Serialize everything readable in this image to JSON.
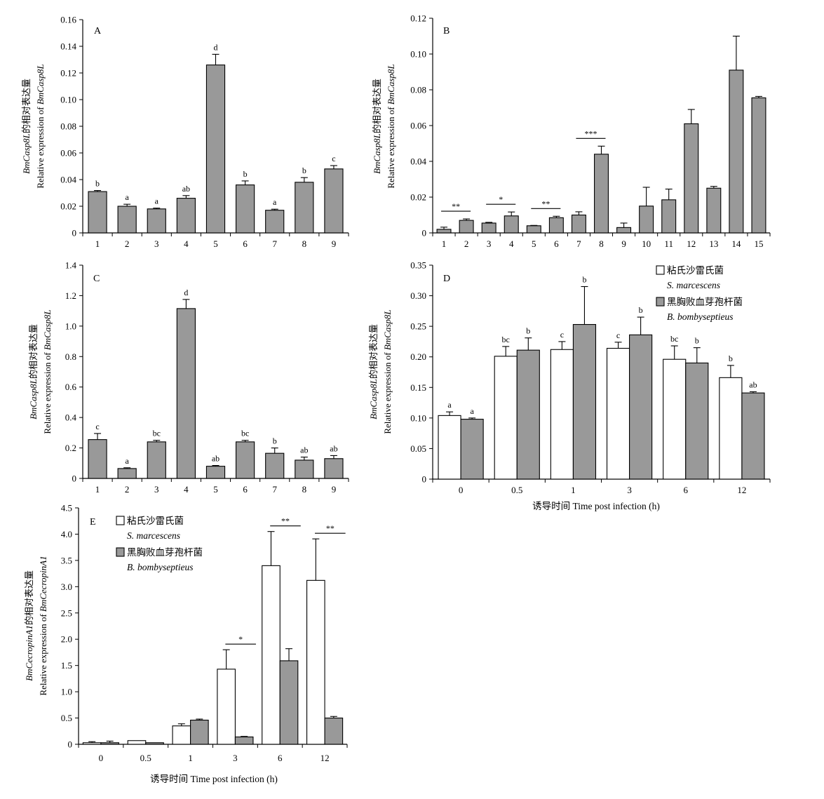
{
  "chart_data": [
    {
      "type": "bar",
      "panel": "A",
      "ylabel_cn": "BmCasp8L的相对表达量",
      "ylabel_en": "Relative expression of BmCasp8L",
      "xlabel": "",
      "ylim": [
        0,
        0.16
      ],
      "yticks": [
        "0",
        "0.02",
        "0.04",
        "0.06",
        "0.08",
        "0.10",
        "0.12",
        "0.14",
        "0.16"
      ],
      "categories": [
        "1",
        "2",
        "3",
        "4",
        "5",
        "6",
        "7",
        "8",
        "9"
      ],
      "series": [
        {
          "color": "#999999",
          "values": [
            0.031,
            0.02,
            0.018,
            0.026,
            0.126,
            0.036,
            0.017,
            0.038,
            0.048
          ],
          "errors": [
            0.0008,
            0.0015,
            0.0006,
            0.002,
            0.008,
            0.003,
            0.0008,
            0.0035,
            0.0025
          ],
          "labels": [
            "b",
            "a",
            "a",
            "ab",
            "d",
            "b",
            "a",
            "b",
            "c"
          ]
        }
      ]
    },
    {
      "type": "bar",
      "panel": "B",
      "ylabel_cn": "BmCasp8L的相对表达量",
      "ylabel_en": "Relative expression of BmCasp8L",
      "xlabel": "",
      "ylim": [
        0,
        0.12
      ],
      "yticks": [
        "0",
        "0.02",
        "0.04",
        "0.06",
        "0.08",
        "0.10",
        "0.12"
      ],
      "categories": [
        "1",
        "2",
        "3",
        "4",
        "5",
        "6",
        "7",
        "8",
        "9",
        "10",
        "11",
        "12",
        "13",
        "14",
        "15"
      ],
      "series": [
        {
          "color": "#999999",
          "values": [
            0.002,
            0.007,
            0.0055,
            0.0095,
            0.004,
            0.0085,
            0.01,
            0.044,
            0.003,
            0.015,
            0.0185,
            0.061,
            0.025,
            0.091,
            0.0755
          ],
          "errors": [
            0.0012,
            0.0008,
            0.0004,
            0.0022,
            0.0002,
            0.0008,
            0.0018,
            0.0045,
            0.0025,
            0.0105,
            0.006,
            0.008,
            0.001,
            0.019,
            0.0008
          ],
          "labels": [
            "",
            "",
            "",
            "",
            "",
            "",
            "",
            "",
            "",
            "",
            "",
            "",
            "",
            "",
            ""
          ]
        }
      ],
      "significance": [
        {
          "from": 1,
          "to": 2,
          "text": "**"
        },
        {
          "from": 3,
          "to": 4,
          "text": "*"
        },
        {
          "from": 5,
          "to": 6,
          "text": "**"
        },
        {
          "from": 7,
          "to": 8,
          "text": "***"
        }
      ]
    },
    {
      "type": "bar",
      "panel": "C",
      "ylabel_cn": "BmCasp8L的相对表达量",
      "ylabel_en": "Relative expression of BmCasp8L",
      "xlabel": "",
      "ylim": [
        0,
        1.4
      ],
      "yticks": [
        "0",
        "0.2",
        "0.4",
        "0.6",
        "0.8",
        "1.0",
        "1.2",
        "1.4"
      ],
      "categories": [
        "1",
        "2",
        "3",
        "4",
        "5",
        "6",
        "7",
        "8",
        "9"
      ],
      "series": [
        {
          "color": "#999999",
          "values": [
            0.255,
            0.065,
            0.24,
            1.115,
            0.08,
            0.24,
            0.165,
            0.12,
            0.13
          ],
          "errors": [
            0.04,
            0.005,
            0.01,
            0.06,
            0.005,
            0.01,
            0.035,
            0.02,
            0.02
          ],
          "labels": [
            "c",
            "a",
            "bc",
            "d",
            "ab",
            "bc",
            "b",
            "ab",
            "ab"
          ]
        }
      ]
    },
    {
      "type": "bar",
      "panel": "D",
      "ylabel_cn": "BmCasp8L的相对表达量",
      "ylabel_en": "Relative expression of BmCasp8L",
      "xlabel": "诱导时间 Time post infection (h)",
      "ylim": [
        0,
        0.35
      ],
      "yticks": [
        "0",
        "0.05",
        "0.10",
        "0.15",
        "0.20",
        "0.25",
        "0.30",
        "0.35"
      ],
      "categories": [
        "0",
        "0.5",
        "1",
        "3",
        "6",
        "12"
      ],
      "legend": [
        {
          "cn": "粘氏沙雷氏菌",
          "en": "S. marcescens",
          "color": "#ffffff"
        },
        {
          "cn": "黑胸败血芽孢杆菌",
          "en": "B. bombyseptieus",
          "color": "#999999"
        }
      ],
      "series": [
        {
          "color": "#ffffff",
          "values": [
            0.104,
            0.201,
            0.212,
            0.214,
            0.196,
            0.166
          ],
          "errors": [
            0.006,
            0.016,
            0.013,
            0.01,
            0.022,
            0.02
          ],
          "labels": [
            "a",
            "bc",
            "c",
            "c",
            "bc",
            "b"
          ]
        },
        {
          "color": "#999999",
          "values": [
            0.098,
            0.211,
            0.253,
            0.236,
            0.19,
            0.141
          ],
          "errors": [
            0.002,
            0.02,
            0.062,
            0.029,
            0.025,
            0.002
          ],
          "labels": [
            "a",
            "b",
            "b",
            "b",
            "b",
            "ab"
          ]
        }
      ]
    },
    {
      "type": "bar",
      "panel": "E",
      "ylabel_cn": "BmCecropinA1的相对表达量",
      "ylabel_en": "Relative expression of BmCecropinA1",
      "xlabel": "诱导时间 Time post infection (h)",
      "ylim": [
        0,
        4.5
      ],
      "yticks": [
        "0",
        "0.5",
        "1.0",
        "1.5",
        "2.0",
        "2.5",
        "3.0",
        "3.5",
        "4.0",
        "4.5"
      ],
      "categories": [
        "0",
        "0.5",
        "1",
        "3",
        "6",
        "12"
      ],
      "legend": [
        {
          "cn": "粘氏沙雷氏菌",
          "en": "S. marcescens",
          "color": "#ffffff"
        },
        {
          "cn": "黑胸败血芽孢杆菌",
          "en": "B. bombyseptieus",
          "color": "#999999"
        }
      ],
      "series": [
        {
          "color": "#ffffff",
          "values": [
            0.03,
            0.07,
            0.35,
            1.43,
            3.4,
            3.12
          ],
          "errors": [
            0.02,
            0.0,
            0.04,
            0.37,
            0.65,
            0.79
          ],
          "labels": [
            "",
            "",
            "",
            "",
            "",
            ""
          ]
        },
        {
          "color": "#999999",
          "values": [
            0.03,
            0.03,
            0.46,
            0.14,
            1.59,
            0.5
          ],
          "errors": [
            0.03,
            0.0,
            0.02,
            0.01,
            0.23,
            0.03
          ],
          "labels": [
            "",
            "",
            "",
            "",
            "",
            ""
          ]
        }
      ],
      "significance": [
        {
          "group": 3,
          "text": "*"
        },
        {
          "group": 4,
          "text": "**"
        },
        {
          "group": 5,
          "text": "**"
        }
      ]
    }
  ]
}
